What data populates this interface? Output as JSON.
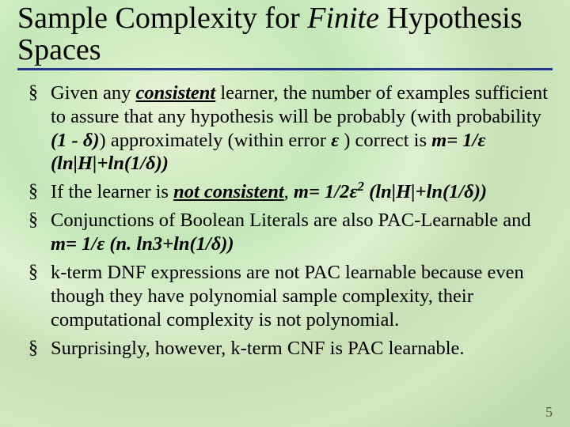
{
  "background": {
    "gradient_colors": [
      "#e8f4d8",
      "#d4ecc4",
      "#c4e8b8",
      "#dcf0d0",
      "#c8e0b4",
      "#d0e8c0",
      "#c0dcac"
    ]
  },
  "title": {
    "pre": "Sample Complexity for ",
    "finite": "Finite",
    "post": " Hypothesis Spaces",
    "font_size": 38,
    "underline_color": "#203890",
    "text_color": "#000000"
  },
  "bullets": [
    {
      "t1": "Given any ",
      "t2": "consistent",
      "t3": " learner, the number of examples sufficient to assure that any hypothesis will be probably (with probability ",
      "t4": "(1 - δ)",
      "t5": ") approximately (within error ",
      "t6": "ε ",
      "t7": ") correct is ",
      "t8": "m= 1/ε (ln|H|+ln(1/δ))"
    },
    {
      "t1": "If the learner is ",
      "t2": "not consistent",
      "t3": ", ",
      "t4": "m= 1/2ε",
      "t5": "2",
      "t6": " (ln|H|+ln(1/δ))"
    },
    {
      "t1": "Conjunctions of Boolean Literals are also PAC-Learnable and ",
      "t2": "m= 1/ε (n. ln3+ln(1/δ))"
    },
    {
      "t1": "k-term DNF expressions are not PAC learnable because even though they have polynomial sample complexity, their computational complexity is not polynomial."
    },
    {
      "t1": "Surprisingly, however, k-term CNF is PAC learnable."
    }
  ],
  "page_number": "5",
  "styling": {
    "body_font": "Times New Roman",
    "bullet_font_size": 24.5,
    "bullet_marker": "§",
    "text_color": "#000000",
    "pagenum_color": "#555555",
    "pagenum_font_size": 18
  }
}
